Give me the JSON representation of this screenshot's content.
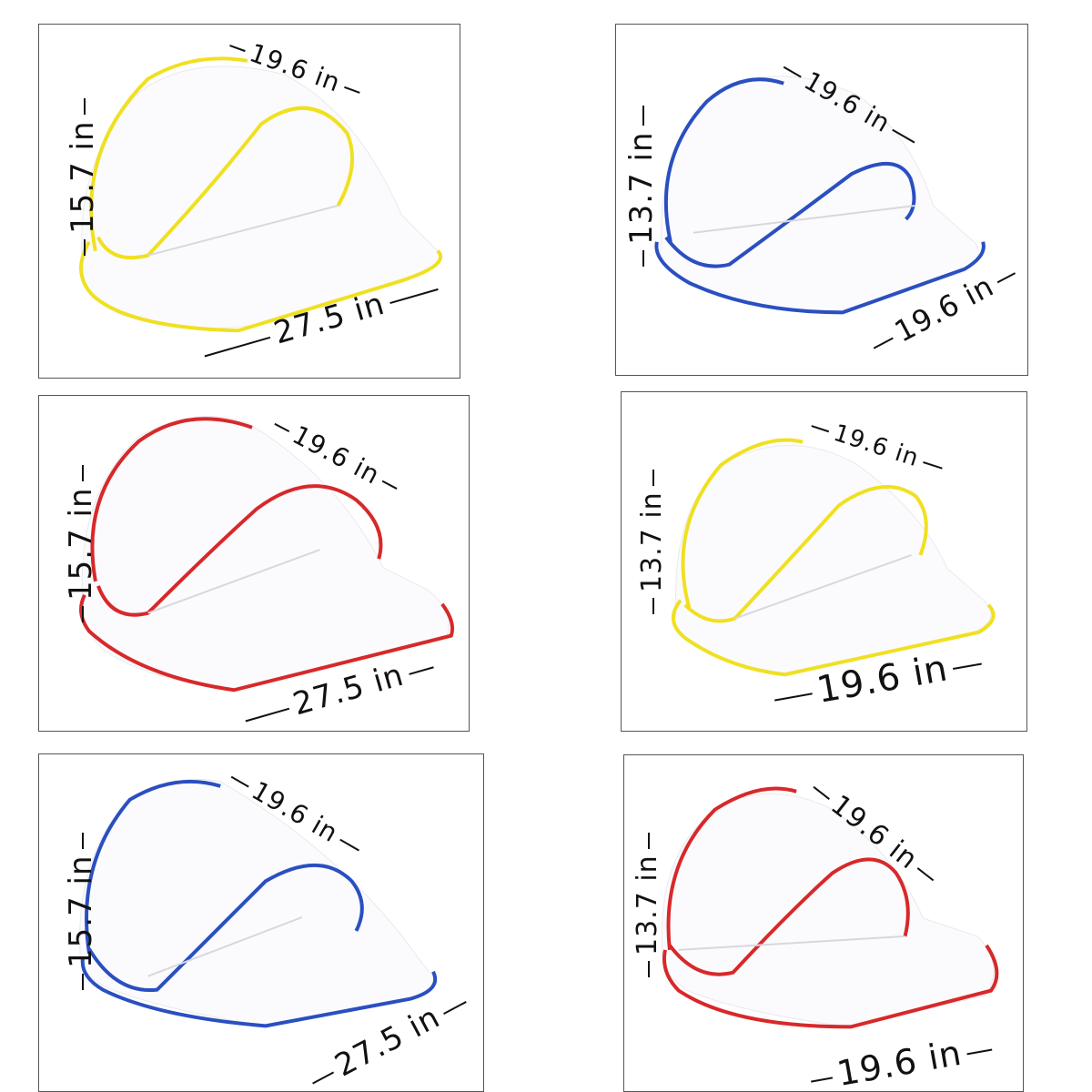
{
  "panels": [
    {
      "color": "#f0e020",
      "height_label": "15.7 in",
      "top_label": "19.6 in",
      "bottom_label": "27.5 in"
    },
    {
      "color": "#2a4fc0",
      "height_label": "13.7 in",
      "top_label": "19.6 in",
      "bottom_label": "19.6 in"
    },
    {
      "color": "#d8282a",
      "height_label": "15.7 in",
      "top_label": "19.6 in",
      "bottom_label": "27.5 in"
    },
    {
      "color": "#f0e020",
      "height_label": "13.7 in",
      "top_label": "19.6 in",
      "bottom_label": "19.6 in"
    },
    {
      "color": "#2a4fc0",
      "height_label": "15.7 in",
      "top_label": "19.6 in",
      "bottom_label": "27.5 in"
    },
    {
      "color": "#d8282a",
      "height_label": "13.7 in",
      "top_label": "19.6 in",
      "bottom_label": "19.6 in"
    }
  ]
}
